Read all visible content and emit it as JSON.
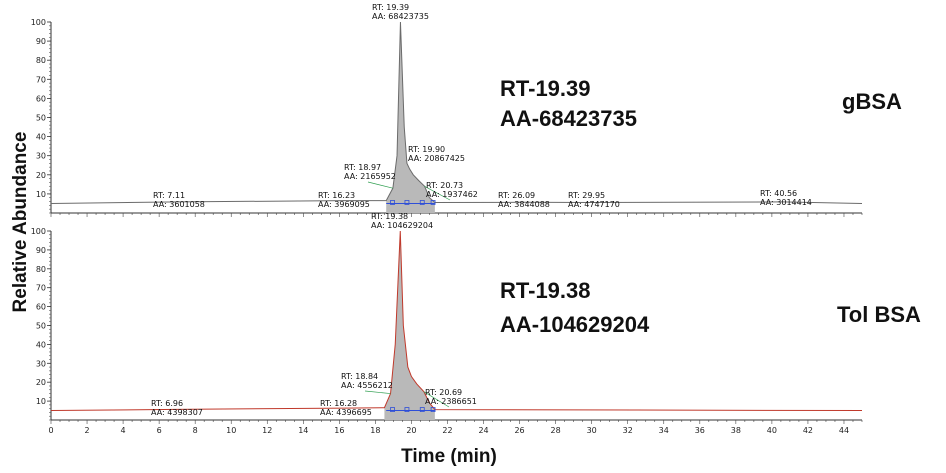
{
  "chart_data": {
    "type": "line",
    "ylabel": "Relative Abundance",
    "xlabel": "Time (min)",
    "xlim": [
      0,
      45
    ],
    "x_ticks": [
      0,
      2,
      4,
      6,
      8,
      10,
      12,
      14,
      16,
      18,
      20,
      22,
      24,
      26,
      28,
      30,
      32,
      34,
      36,
      38,
      40,
      42,
      44
    ],
    "panels": [
      {
        "label": "gBSA",
        "summary_rt": "RT-19.39",
        "summary_aa": "AA-68423735",
        "color": "#6b6b6b",
        "ylim": [
          0,
          100
        ],
        "y_ticks": [
          10,
          20,
          30,
          40,
          50,
          60,
          70,
          80,
          90,
          100
        ],
        "trace": [
          [
            0,
            5
          ],
          [
            7.11,
            5.8
          ],
          [
            16.23,
            6.5
          ],
          [
            18.6,
            6.5
          ],
          [
            18.97,
            13
          ],
          [
            19.2,
            30
          ],
          [
            19.39,
            100
          ],
          [
            19.6,
            45
          ],
          [
            19.75,
            26
          ],
          [
            19.9,
            23
          ],
          [
            20.1,
            20
          ],
          [
            20.4,
            17
          ],
          [
            20.73,
            14
          ],
          [
            21.0,
            8
          ],
          [
            21.3,
            5.5
          ],
          [
            26.09,
            5.6
          ],
          [
            29.95,
            5.5
          ],
          [
            40.56,
            5.8
          ],
          [
            45,
            5
          ]
        ],
        "peaks": [
          {
            "rt": "RT: 19.39",
            "aa": "AA: 68423735",
            "x": 19.39,
            "y": 100
          },
          {
            "rt": "RT: 7.11",
            "aa": "AA: 3601058",
            "x": 7.11,
            "y": 5.8
          },
          {
            "rt": "RT: 16.23",
            "aa": "AA: 3969095",
            "x": 16.23,
            "y": 6.5
          },
          {
            "rt": "RT: 18.97",
            "aa": "AA: 2165952",
            "x": 18.97,
            "y": 13
          },
          {
            "rt": "RT: 19.90",
            "aa": "AA: 20867425",
            "x": 19.9,
            "y": 23
          },
          {
            "rt": "RT: 20.73",
            "aa": "AA: 1937462",
            "x": 20.73,
            "y": 14
          },
          {
            "rt": "RT: 26.09",
            "aa": "AA: 3844088",
            "x": 26.09,
            "y": 5.6
          },
          {
            "rt": "RT: 29.95",
            "aa": "AA: 4747170",
            "x": 29.95,
            "y": 5.5
          },
          {
            "rt": "RT: 40.56",
            "aa": "AA: 3014414",
            "x": 40.56,
            "y": 5.8
          }
        ]
      },
      {
        "label": "Tol BSA",
        "summary_rt": "RT-19.38",
        "summary_aa": "AA-104629204",
        "color": "#c0392b",
        "ylim": [
          0,
          100
        ],
        "y_ticks": [
          10,
          20,
          30,
          40,
          50,
          60,
          70,
          80,
          90,
          100
        ],
        "trace": [
          [
            0,
            5
          ],
          [
            6.96,
            5.6
          ],
          [
            16.28,
            6.3
          ],
          [
            18.5,
            6.5
          ],
          [
            18.84,
            14
          ],
          [
            19.1,
            40
          ],
          [
            19.38,
            100
          ],
          [
            19.55,
            50
          ],
          [
            19.8,
            28
          ],
          [
            20.0,
            23
          ],
          [
            20.3,
            19
          ],
          [
            20.69,
            15
          ],
          [
            21.0,
            9
          ],
          [
            21.3,
            5.5
          ],
          [
            45,
            5
          ]
        ],
        "peaks": [
          {
            "rt": "RT: 19.38",
            "aa": "AA: 104629204",
            "x": 19.38,
            "y": 100
          },
          {
            "rt": "RT: 6.96",
            "aa": "AA: 4398307",
            "x": 6.96,
            "y": 5.6
          },
          {
            "rt": "RT: 16.28",
            "aa": "AA: 4396695",
            "x": 16.28,
            "y": 6.3
          },
          {
            "rt": "RT: 18.84",
            "aa": "AA: 4556212",
            "x": 18.84,
            "y": 14
          },
          {
            "rt": "RT: 20.69",
            "aa": "AA: 2386651",
            "x": 20.69,
            "y": 15
          }
        ]
      }
    ]
  }
}
